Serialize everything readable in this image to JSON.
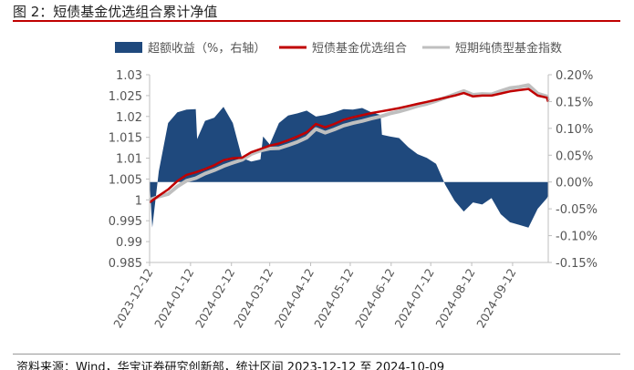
{
  "title": "图 2：短债基金优选组合累计净值",
  "source": "资料来源：Wind，华宝证券研究创新部，统计区间 2023-12-12 至 2024-10-09",
  "chart_data": {
    "type": "line+area",
    "title": "",
    "legend_position": "top",
    "grid": false,
    "colors": {
      "excess": "#1f497d",
      "portfolio": "#c00000",
      "index": "#bfbfbf"
    },
    "x_range": [
      "2023-12-12",
      "2024-10-09"
    ],
    "x_ticks": [
      "2023-12-12",
      "2024-01-12",
      "2024-02-12",
      "2024-03-12",
      "2024-04-12",
      "2024-05-12",
      "2024-06-12",
      "2024-07-12",
      "2024-08-12",
      "2024-09-12"
    ],
    "left_axis": {
      "range": [
        0.985,
        1.03
      ],
      "ticks": [
        "0.985",
        "0.99",
        "0.995",
        "1",
        "1.005",
        "1.01",
        "1.015",
        "1.02",
        "1.025",
        "1.03"
      ]
    },
    "right_axis": {
      "range": [
        -0.15,
        0.2
      ],
      "ticks": [
        "-0.15%",
        "-0.10%",
        "-0.05%",
        "0.00%",
        "0.05%",
        "0.10%",
        "0.15%",
        "0.20%"
      ]
    },
    "series": [
      {
        "name": "超额收益（%，右轴）",
        "type": "area",
        "axis": "right",
        "points": [
          [
            "2023-12-12",
            0
          ],
          [
            "2023-12-14",
            -0.085
          ],
          [
            "2023-12-19",
            0.02
          ],
          [
            "2023-12-26",
            0.11
          ],
          [
            "2024-01-02",
            0.13
          ],
          [
            "2024-01-09",
            0.135
          ],
          [
            "2024-01-16",
            0.136
          ],
          [
            "2024-01-17",
            0.08
          ],
          [
            "2024-01-23",
            0.114
          ],
          [
            "2024-01-30",
            0.12
          ],
          [
            "2024-02-06",
            0.14
          ],
          [
            "2024-02-13",
            0.11
          ],
          [
            "2024-02-20",
            0.045
          ],
          [
            "2024-02-27",
            0.038
          ],
          [
            "2024-03-05",
            0.042
          ],
          [
            "2024-03-07",
            0.085
          ],
          [
            "2024-03-12",
            0.07
          ],
          [
            "2024-03-19",
            0.11
          ],
          [
            "2024-03-26",
            0.124
          ],
          [
            "2024-04-02",
            0.128
          ],
          [
            "2024-04-09",
            0.133
          ],
          [
            "2024-04-16",
            0.122
          ],
          [
            "2024-04-23",
            0.125
          ],
          [
            "2024-04-30",
            0.13
          ],
          [
            "2024-05-07",
            0.136
          ],
          [
            "2024-05-14",
            0.135
          ],
          [
            "2024-05-21",
            0.138
          ],
          [
            "2024-05-28",
            0.13
          ],
          [
            "2024-06-04",
            0.125
          ],
          [
            "2024-06-05",
            0.088
          ],
          [
            "2024-06-11",
            0.085
          ],
          [
            "2024-06-18",
            0.082
          ],
          [
            "2024-06-25",
            0.065
          ],
          [
            "2024-07-02",
            0.052
          ],
          [
            "2024-07-09",
            0.045
          ],
          [
            "2024-07-16",
            0.034
          ],
          [
            "2024-07-23",
            -0.005
          ],
          [
            "2024-07-30",
            -0.035
          ],
          [
            "2024-08-06",
            -0.055
          ],
          [
            "2024-08-13",
            -0.038
          ],
          [
            "2024-08-20",
            -0.042
          ],
          [
            "2024-08-27",
            -0.03
          ],
          [
            "2024-09-03",
            -0.06
          ],
          [
            "2024-09-10",
            -0.075
          ],
          [
            "2024-09-17",
            -0.08
          ],
          [
            "2024-09-24",
            -0.085
          ],
          [
            "2024-10-01",
            -0.05
          ],
          [
            "2024-10-08",
            -0.03
          ],
          [
            "2024-10-09",
            -0.025
          ]
        ]
      },
      {
        "name": "短债基金优选组合",
        "type": "line",
        "axis": "left",
        "points": [
          [
            "2023-12-12",
            0.9994
          ],
          [
            "2023-12-19",
            1.001
          ],
          [
            "2023-12-26",
            1.0025
          ],
          [
            "2024-01-02",
            1.0045
          ],
          [
            "2024-01-09",
            1.006
          ],
          [
            "2024-01-16",
            1.0066
          ],
          [
            "2024-01-23",
            1.0074
          ],
          [
            "2024-01-30",
            1.0083
          ],
          [
            "2024-02-06",
            1.0095
          ],
          [
            "2024-02-13",
            1.01
          ],
          [
            "2024-02-20",
            1.0101
          ],
          [
            "2024-02-27",
            1.0114
          ],
          [
            "2024-03-05",
            1.0122
          ],
          [
            "2024-03-12",
            1.013
          ],
          [
            "2024-03-19",
            1.0135
          ],
          [
            "2024-03-26",
            1.0143
          ],
          [
            "2024-04-02",
            1.0152
          ],
          [
            "2024-04-09",
            1.0162
          ],
          [
            "2024-04-16",
            1.0182
          ],
          [
            "2024-04-23",
            1.0174
          ],
          [
            "2024-04-30",
            1.0182
          ],
          [
            "2024-05-07",
            1.0192
          ],
          [
            "2024-05-14",
            1.0198
          ],
          [
            "2024-05-21",
            1.0203
          ],
          [
            "2024-05-28",
            1.0208
          ],
          [
            "2024-06-04",
            1.0212
          ],
          [
            "2024-06-11",
            1.0216
          ],
          [
            "2024-06-18",
            1.022
          ],
          [
            "2024-06-25",
            1.0225
          ],
          [
            "2024-07-02",
            1.023
          ],
          [
            "2024-07-09",
            1.0235
          ],
          [
            "2024-07-16",
            1.024
          ],
          [
            "2024-07-23",
            1.0245
          ],
          [
            "2024-07-30",
            1.025
          ],
          [
            "2024-08-06",
            1.0256
          ],
          [
            "2024-08-13",
            1.0248
          ],
          [
            "2024-08-20",
            1.025
          ],
          [
            "2024-08-27",
            1.025
          ],
          [
            "2024-09-03",
            1.0255
          ],
          [
            "2024-09-10",
            1.026
          ],
          [
            "2024-09-17",
            1.0263
          ],
          [
            "2024-09-24",
            1.0266
          ],
          [
            "2024-10-01",
            1.025
          ],
          [
            "2024-10-08",
            1.0245
          ],
          [
            "2024-10-09",
            1.0235
          ]
        ]
      },
      {
        "name": "短期纯债型基金指数",
        "type": "line",
        "axis": "left",
        "points": [
          [
            "2023-12-12",
            1.0
          ],
          [
            "2023-12-19",
            1.0008
          ],
          [
            "2023-12-26",
            1.0014
          ],
          [
            "2024-01-02",
            1.0032
          ],
          [
            "2024-01-09",
            1.0046
          ],
          [
            "2024-01-16",
            1.0052
          ],
          [
            "2024-01-23",
            1.0063
          ],
          [
            "2024-01-30",
            1.0071
          ],
          [
            "2024-02-06",
            1.0081
          ],
          [
            "2024-02-13",
            1.0089
          ],
          [
            "2024-02-20",
            1.0096
          ],
          [
            "2024-02-27",
            1.011
          ],
          [
            "2024-03-05",
            1.0118
          ],
          [
            "2024-03-12",
            1.0123
          ],
          [
            "2024-03-19",
            1.0124
          ],
          [
            "2024-03-26",
            1.0131
          ],
          [
            "2024-04-02",
            1.0139
          ],
          [
            "2024-04-09",
            1.0149
          ],
          [
            "2024-04-16",
            1.017
          ],
          [
            "2024-04-23",
            1.0161
          ],
          [
            "2024-04-30",
            1.0169
          ],
          [
            "2024-05-07",
            1.0178
          ],
          [
            "2024-05-14",
            1.0184
          ],
          [
            "2024-05-21",
            1.0189
          ],
          [
            "2024-05-28",
            1.0195
          ],
          [
            "2024-06-04",
            1.02
          ],
          [
            "2024-06-11",
            1.0207
          ],
          [
            "2024-06-18",
            1.0212
          ],
          [
            "2024-06-25",
            1.0218
          ],
          [
            "2024-07-02",
            1.0225
          ],
          [
            "2024-07-09",
            1.023
          ],
          [
            "2024-07-16",
            1.0237
          ],
          [
            "2024-07-23",
            1.0245
          ],
          [
            "2024-07-30",
            1.0253
          ],
          [
            "2024-08-06",
            1.0261
          ],
          [
            "2024-08-13",
            1.0252
          ],
          [
            "2024-08-20",
            1.0254
          ],
          [
            "2024-08-27",
            1.0253
          ],
          [
            "2024-09-03",
            1.0261
          ],
          [
            "2024-09-10",
            1.0268
          ],
          [
            "2024-09-17",
            1.0271
          ],
          [
            "2024-09-24",
            1.0275
          ],
          [
            "2024-10-01",
            1.0255
          ],
          [
            "2024-10-08",
            1.0248
          ],
          [
            "2024-10-09",
            1.0238
          ]
        ]
      }
    ]
  }
}
